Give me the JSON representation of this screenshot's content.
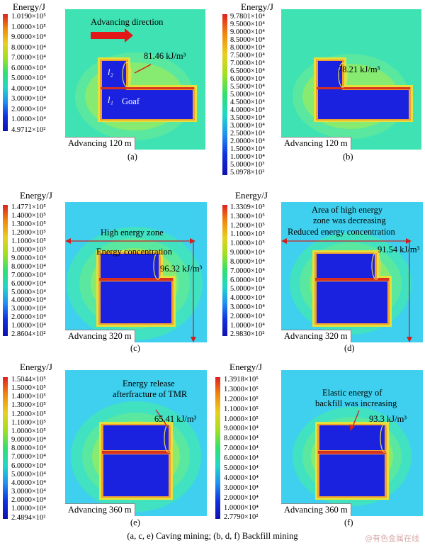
{
  "caption": "(a, c, e) Caving mining; (b, d, f) Backfill mining",
  "watermark": "@有色金属在线",
  "panels": [
    {
      "sub": "(a)",
      "title": "Energy/J",
      "advancing": "Advancing 120 m",
      "ticks": [
        "1.0190×10⁵",
        "1.0000×10⁵",
        "9.0000×10⁴",
        "8.0000×10⁴",
        "7.0000×10⁴",
        "6.0000×10⁴",
        "5.0000×10⁴",
        "4.0000×10⁴",
        "3.0000×10⁴",
        "2.0000×10⁴",
        "1.0000×10⁴",
        "4.9712×10²"
      ],
      "value": "81.46 kJ/m³",
      "direction": "Advancing direction",
      "l2": "l₂",
      "l1": "l₁",
      "goaf": "Goaf"
    },
    {
      "sub": "(b)",
      "title": "Energy/J",
      "advancing": "Advancing 120 m",
      "ticks": [
        "9.7801×10⁴",
        "9.5000×10⁴",
        "9.0000×10⁴",
        "8.5000×10⁴",
        "8.0000×10⁴",
        "7.5000×10⁴",
        "7.0000×10⁴",
        "6.5000×10⁴",
        "6.0000×10⁴",
        "5.5000×10⁴",
        "5.0000×10⁴",
        "4.5000×10⁴",
        "4.0000×10⁴",
        "3.5000×10⁴",
        "3.0000×10⁴",
        "2.5000×10⁴",
        "2.0000×10⁴",
        "1.5000×10⁴",
        "1.0000×10⁴",
        "5.0000×10³",
        "5.0978×10²"
      ],
      "value": "78.21 kJ/m³"
    },
    {
      "sub": "(c)",
      "title": "Energy/J",
      "advancing": "Advancing 320 m",
      "ticks": [
        "1.4771×10⁵",
        "1.4000×10⁵",
        "1.3000×10⁵",
        "1.2000×10⁵",
        "1.1000×10⁵",
        "1.0000×10⁵",
        "9.0000×10⁴",
        "8.0000×10⁴",
        "7.0000×10⁴",
        "6.0000×10⁴",
        "5.0000×10⁴",
        "4.0000×10⁴",
        "3.0000×10⁴",
        "2.0000×10⁴",
        "1.0000×10⁴",
        "2.8604×10²"
      ],
      "value": "96.32 kJ/m³",
      "zone": "High energy zone",
      "note": "Energy concentration"
    },
    {
      "sub": "(d)",
      "title": "Energy/J",
      "advancing": "Advancing 320 m",
      "ticks": [
        "1.3309×10⁵",
        "1.3000×10⁵",
        "1.2000×10⁵",
        "1.1000×10⁵",
        "1.0000×10⁵",
        "9.0000×10⁴",
        "8.0000×10⁴",
        "7.0000×10⁴",
        "6.0000×10⁴",
        "5.0000×10⁴",
        "4.0000×10⁴",
        "3.0000×10⁴",
        "2.0000×10⁴",
        "1.0000×10⁴",
        "2.9830×10²"
      ],
      "value": "91.54 kJ/m³",
      "zone1": "Area of high energy",
      "zone2": "zone was decreasing",
      "note": "Reduced energy concentration"
    },
    {
      "sub": "(e)",
      "title": "Energy/J",
      "advancing": "Advancing 360 m",
      "ticks": [
        "1.5044×10⁵",
        "1.5000×10⁵",
        "1.4000×10⁵",
        "1.3000×10⁵",
        "1.2000×10⁵",
        "1.1000×10⁵",
        "1.0000×10⁵",
        "9.0000×10⁴",
        "8.0000×10⁴",
        "7.0000×10⁴",
        "6.0000×10⁴",
        "5.0000×10⁴",
        "4.0000×10⁴",
        "3.0000×10⁴",
        "2.0000×10⁴",
        "1.0000×10⁴",
        "2.4894×10²"
      ],
      "value": "65.41 kJ/m³",
      "note1": "Energy release",
      "note2": "afterfracture of TMR"
    },
    {
      "sub": "(f)",
      "title": "Energy/J",
      "advancing": "Advancing 360 m",
      "ticks": [
        "1.3918×10⁵",
        "1.3000×10⁵",
        "1.2000×10⁵",
        "1.1000×10⁵",
        "1.0000×10⁵",
        "9.0000×10⁴",
        "8.0000×10⁴",
        "7.0000×10⁴",
        "6.0000×10⁴",
        "5.0000×10⁴",
        "4.0000×10⁴",
        "3.0000×10⁴",
        "2.0000×10⁴",
        "1.0000×10⁴",
        "2.7790×10²"
      ],
      "value": "93.3 kJ/m³",
      "note1": "Elastic energy of",
      "note2": "backfill was increasing"
    }
  ]
}
